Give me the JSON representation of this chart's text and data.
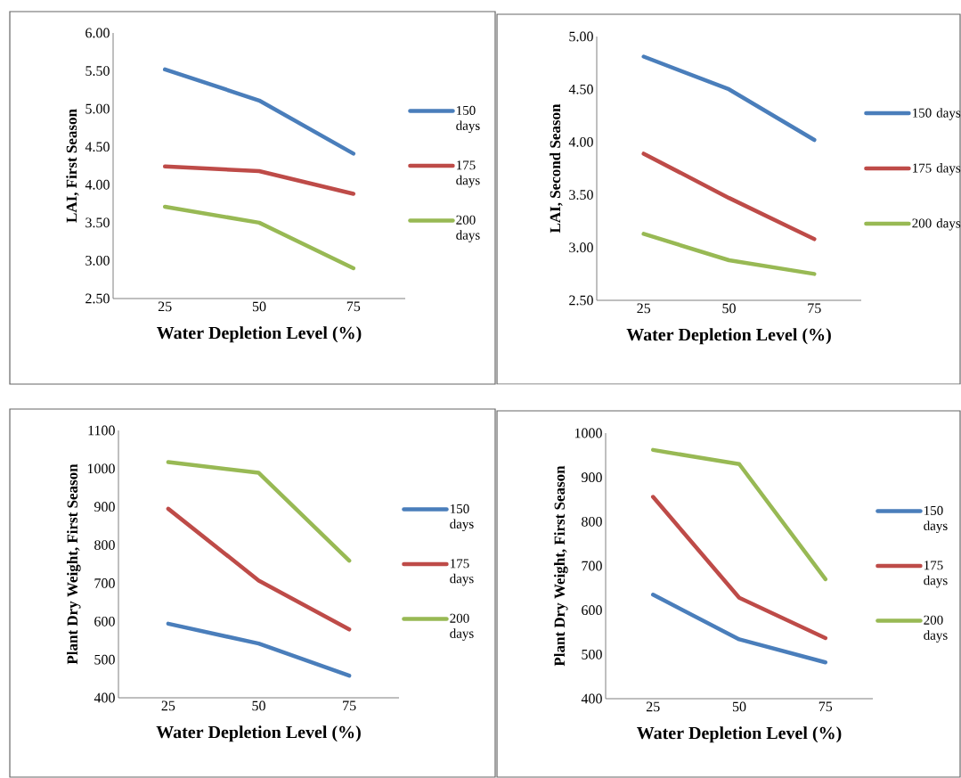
{
  "chart_data": [
    {
      "type": "line",
      "categories": [
        "25",
        "50",
        "75"
      ],
      "xlabel": "Water Depletion Level  (%)",
      "ylabel": "LAI,  First Season",
      "ylim": [
        2.5,
        6
      ],
      "yticks": [
        {
          "value": 2.5,
          "label": "2.50"
        },
        {
          "value": 3,
          "label": "3.00"
        },
        {
          "value": 3.5,
          "label": "3.50"
        },
        {
          "value": 4,
          "label": "4.00"
        },
        {
          "value": 4.5,
          "label": "4.50"
        },
        {
          "value": 5,
          "label": "5.00"
        },
        {
          "value": 5.5,
          "label": "5.50"
        },
        {
          "value": 6,
          "label": "6.00"
        }
      ],
      "legend": "right",
      "series": [
        {
          "name": "150 days",
          "color": "#4a7ebb",
          "values": [
            5.52,
            5.11,
            4.41
          ]
        },
        {
          "name": "175 days",
          "color": "#be4b48",
          "values": [
            4.24,
            4.18,
            3.88
          ]
        },
        {
          "name": "200 days",
          "color": "#98b954",
          "values": [
            3.71,
            3.5,
            2.9
          ]
        }
      ]
    },
    {
      "type": "line",
      "categories": [
        "25",
        "50",
        "75"
      ],
      "xlabel": "Water Depletion Level  (%)",
      "ylabel": "LAI, Second Season",
      "ylim": [
        2.5,
        5
      ],
      "yticks": [
        {
          "value": 2.5,
          "label": "2.50"
        },
        {
          "value": 3,
          "label": "3.00"
        },
        {
          "value": 3.5,
          "label": "3.50"
        },
        {
          "value": 4,
          "label": "4.00"
        },
        {
          "value": 4.5,
          "label": "4.50"
        },
        {
          "value": 5,
          "label": "5.00"
        }
      ],
      "legend": "right",
      "series": [
        {
          "name": "150 days",
          "color": "#4a7ebb",
          "values": [
            4.81,
            4.5,
            4.02
          ]
        },
        {
          "name": "175 days",
          "color": "#be4b48",
          "values": [
            3.89,
            3.47,
            3.08
          ]
        },
        {
          "name": "200 days",
          "color": "#98b954",
          "values": [
            3.13,
            2.88,
            2.75
          ]
        }
      ]
    },
    {
      "type": "line",
      "categories": [
        "25",
        "50",
        "75"
      ],
      "xlabel": "Water Depletion Level  (%)",
      "ylabel": "Plant Dry Weight,  First Season",
      "ylim": [
        400,
        1100
      ],
      "yticks": [
        400,
        500,
        600,
        700,
        800,
        900,
        1000,
        1100
      ],
      "legend": "right",
      "series": [
        {
          "name": "150 days",
          "color": "#4a7ebb",
          "values": [
            594,
            542,
            458
          ]
        },
        {
          "name": "175 days",
          "color": "#be4b48",
          "values": [
            895,
            707,
            579
          ]
        },
        {
          "name": "200 days",
          "color": "#98b954",
          "values": [
            1017,
            989,
            759
          ]
        }
      ]
    },
    {
      "type": "line",
      "categories": [
        "25",
        "50",
        "75"
      ],
      "xlabel": "Water Depletion Level  (%)",
      "ylabel": "Plant Dry Weight,  First Season",
      "ylim": [
        400,
        1000
      ],
      "yticks": [
        400,
        500,
        600,
        700,
        800,
        900,
        1000
      ],
      "legend": "right",
      "series": [
        {
          "name": "150 days",
          "color": "#4a7ebb",
          "values": [
            635,
            534,
            482
          ]
        },
        {
          "name": "175 days",
          "color": "#be4b48",
          "values": [
            856,
            628,
            537
          ]
        },
        {
          "name": "200 days",
          "color": "#98b954",
          "values": [
            962,
            930,
            670
          ]
        }
      ]
    }
  ]
}
